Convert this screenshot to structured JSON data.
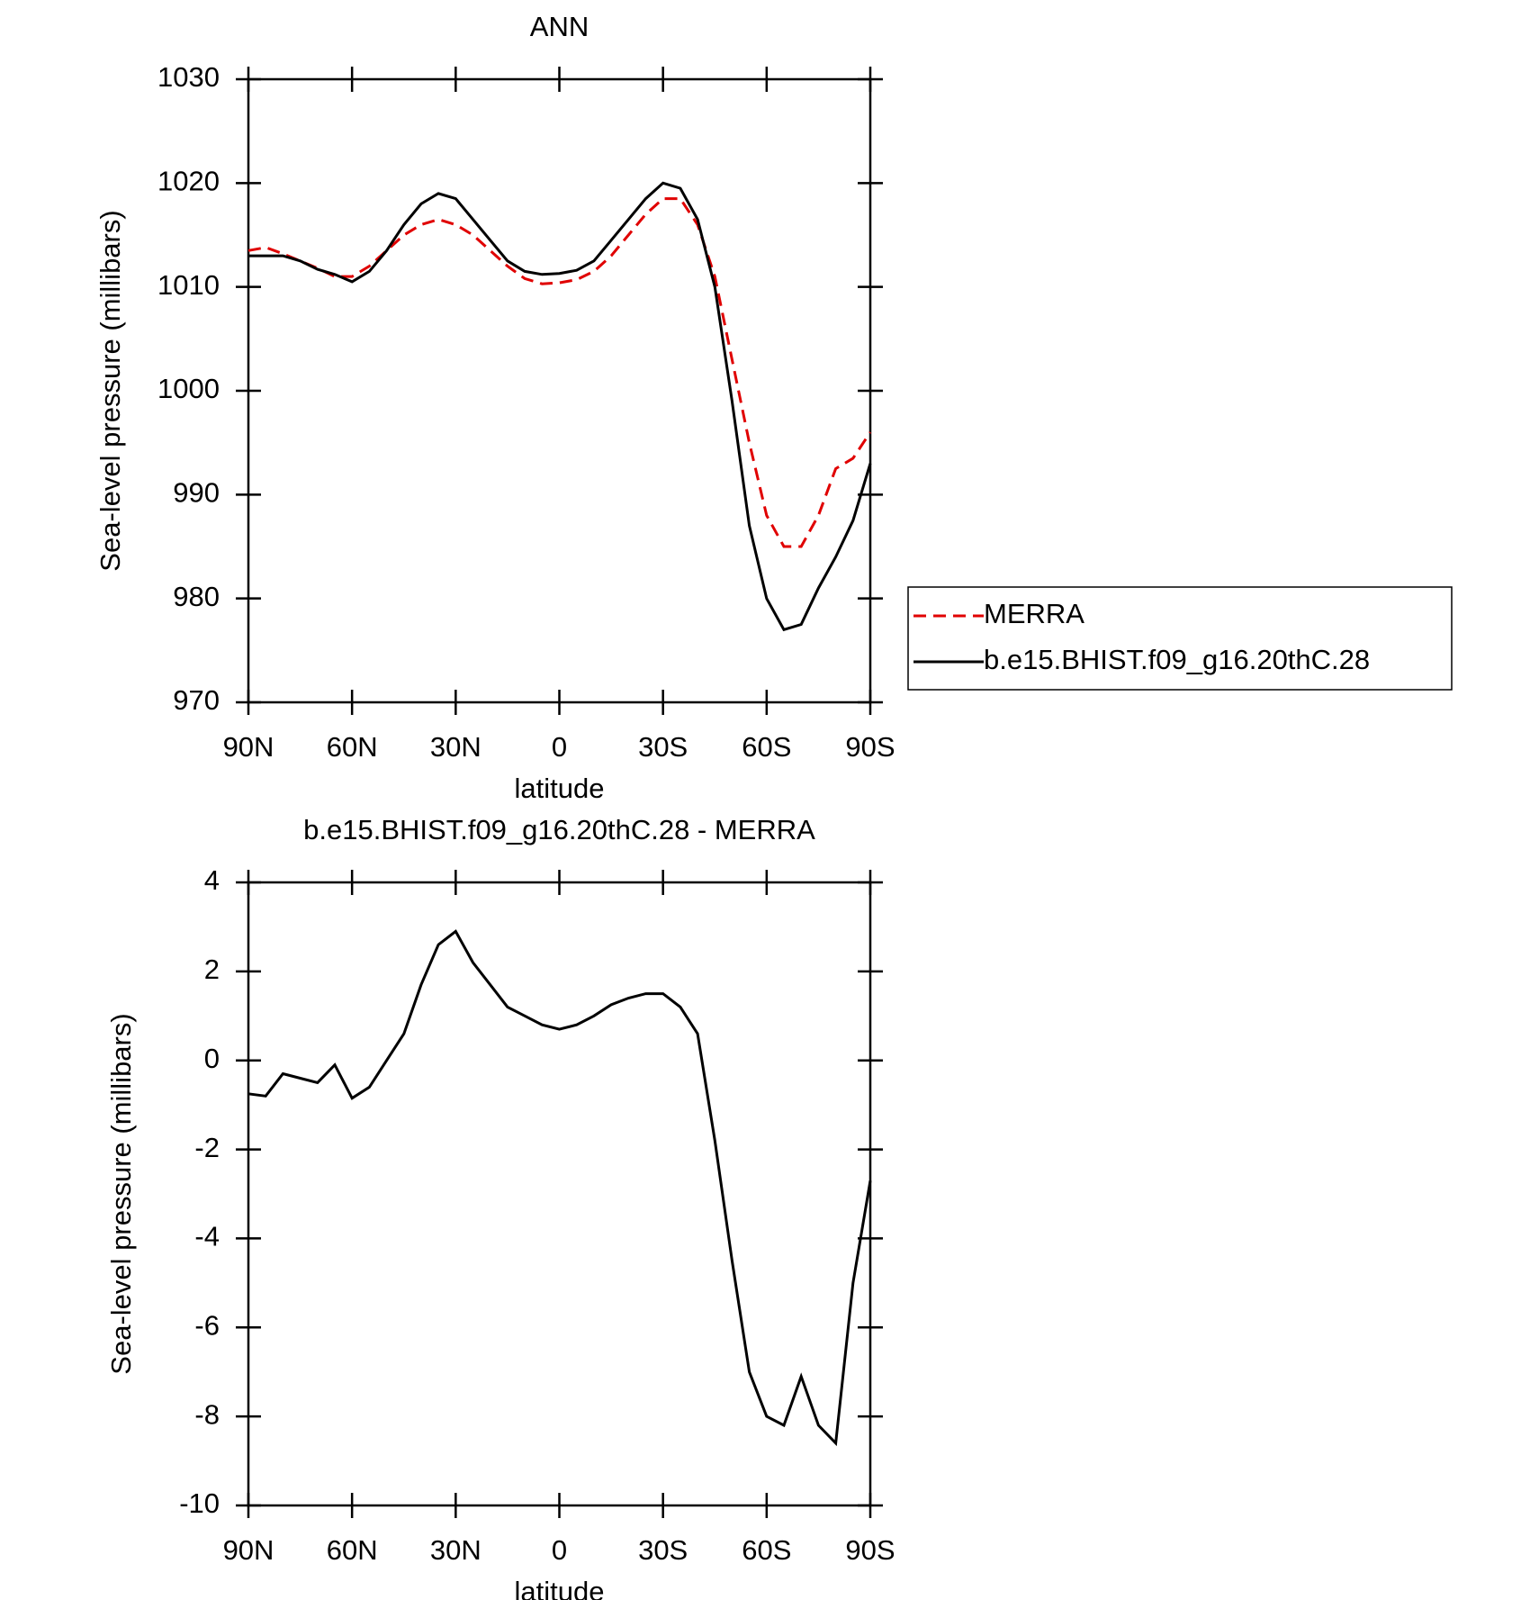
{
  "chart_data": [
    {
      "type": "line",
      "title": "ANN",
      "xlabel": "latitude",
      "ylabel": "Sea-level pressure (millibars)",
      "x": [
        90,
        85,
        80,
        75,
        70,
        65,
        60,
        55,
        50,
        45,
        40,
        35,
        30,
        25,
        20,
        15,
        10,
        5,
        0,
        -5,
        -10,
        -15,
        -20,
        -25,
        -30,
        -35,
        -40,
        -45,
        -50,
        -55,
        -60,
        -65,
        -70,
        -75,
        -80,
        -85,
        -90
      ],
      "xlim": [
        90,
        -90
      ],
      "xticks": [
        {
          "value": 90,
          "label": "90N"
        },
        {
          "value": 60,
          "label": "60N"
        },
        {
          "value": 30,
          "label": "30N"
        },
        0,
        {
          "value": -30,
          "label": "30S"
        },
        {
          "value": -60,
          "label": "60S"
        },
        {
          "value": -90,
          "label": "90S"
        }
      ],
      "ylim": [
        970,
        1030
      ],
      "yticks": [
        970,
        980,
        990,
        1000,
        1010,
        1020,
        1030
      ],
      "legend": "outside right",
      "series": [
        {
          "name": "MERRA",
          "color": "#e00000",
          "dashed": true,
          "values": [
            1013.5,
            1013.8,
            1013.2,
            1012.5,
            1011.8,
            1011,
            1011,
            1012,
            1013.5,
            1015,
            1016,
            1016.5,
            1016,
            1015,
            1013.5,
            1012,
            1010.8,
            1010.3,
            1010.4,
            1010.7,
            1011.5,
            1013,
            1015,
            1017,
            1018.5,
            1018.5,
            1016,
            1011,
            1003,
            995,
            988,
            985,
            985,
            988,
            992.5,
            993.5,
            996
          ]
        },
        {
          "name": "b.e15.BHIST.f09_g16.20thC.28",
          "color": "#000000",
          "dashed": false,
          "values": [
            1013,
            1013,
            1013,
            1012.5,
            1011.7,
            1011.2,
            1010.5,
            1011.5,
            1013.5,
            1016,
            1018,
            1019,
            1018.5,
            1016.5,
            1014.5,
            1012.5,
            1011.5,
            1011.2,
            1011.3,
            1011.6,
            1012.5,
            1014.5,
            1016.5,
            1018.5,
            1020,
            1019.5,
            1016.5,
            1010,
            999,
            987,
            980,
            977,
            977.5,
            981,
            984,
            987.5,
            993
          ]
        }
      ]
    },
    {
      "type": "line",
      "title": "b.e15.BHIST.f09_g16.20thC.28 - MERRA",
      "xlabel": "latitude",
      "ylabel": "Sea-level pressure (millibars)",
      "x": [
        90,
        85,
        80,
        75,
        70,
        65,
        60,
        55,
        50,
        45,
        40,
        35,
        30,
        25,
        20,
        15,
        10,
        5,
        0,
        -5,
        -10,
        -15,
        -20,
        -25,
        -30,
        -35,
        -40,
        -45,
        -50,
        -55,
        -60,
        -65,
        -70,
        -75,
        -80,
        -85,
        -90
      ],
      "xlim": [
        90,
        -90
      ],
      "xticks": [
        {
          "value": 90,
          "label": "90N"
        },
        {
          "value": 60,
          "label": "60N"
        },
        {
          "value": 30,
          "label": "30N"
        },
        0,
        {
          "value": -30,
          "label": "30S"
        },
        {
          "value": -60,
          "label": "60S"
        },
        {
          "value": -90,
          "label": "90S"
        }
      ],
      "ylim": [
        -10,
        4
      ],
      "yticks": [
        -10,
        -8,
        -6,
        -4,
        -2,
        0,
        2,
        4
      ],
      "series": [
        {
          "color": "#000000",
          "dashed": false,
          "values": [
            -0.75,
            -0.8,
            -0.3,
            -0.4,
            -0.5,
            -0.1,
            -0.85,
            -0.6,
            0,
            0.6,
            1.7,
            2.6,
            2.9,
            2.2,
            1.7,
            1.2,
            1.0,
            0.8,
            0.7,
            0.8,
            1.0,
            1.25,
            1.4,
            1.5,
            1.5,
            1.2,
            0.6,
            -1.8,
            -4.5,
            -7.0,
            -8.0,
            -8.2,
            -7.1,
            -8.2,
            -8.6,
            -5.0,
            -2.7
          ]
        }
      ]
    }
  ]
}
